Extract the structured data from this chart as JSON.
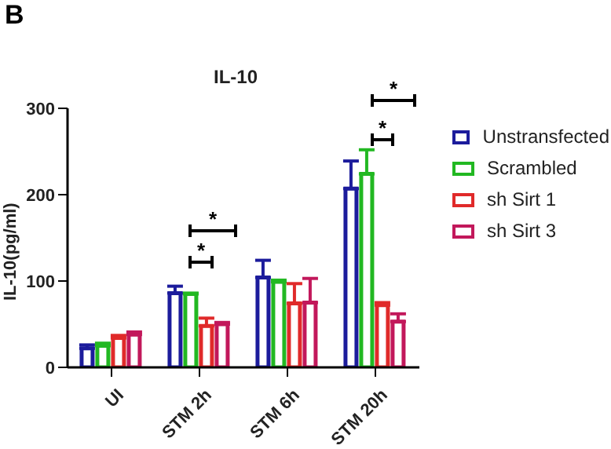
{
  "chart_data": {
    "type": "bar",
    "title": "IL-10",
    "ylabel": "IL-10(pg/ml)",
    "categories": [
      "UI",
      "STM 2h",
      "STM 6h",
      "STM 20h"
    ],
    "series": [
      {
        "name": "Unstransfected",
        "color": "#1c1c9c",
        "values": [
          22,
          86,
          104,
          207
        ],
        "errors": [
          [
            22,
            26
          ],
          [
            86,
            94
          ],
          [
            104,
            124
          ],
          [
            207,
            239
          ]
        ]
      },
      {
        "name": "Scrambled",
        "color": "#22b822",
        "values": [
          25,
          85,
          99,
          224
        ],
        "errors": [
          [
            25,
            28
          ],
          [
            85,
            86
          ],
          [
            99,
            101
          ],
          [
            224,
            252
          ]
        ]
      },
      {
        "name": "sh Sirt 1",
        "color": "#e02a2a",
        "values": [
          34,
          48,
          74,
          72
        ],
        "errors": [
          [
            34,
            37
          ],
          [
            48,
            57
          ],
          [
            74,
            97
          ],
          [
            72,
            75
          ]
        ]
      },
      {
        "name": "sh Sirt 3",
        "color": "#c2185b",
        "values": [
          38,
          50,
          75,
          53
        ],
        "errors": [
          [
            38,
            41
          ],
          [
            50,
            52
          ],
          [
            75,
            103
          ],
          [
            53,
            62
          ]
        ]
      }
    ],
    "ylim": [
      0,
      300
    ],
    "yticks": [
      0,
      100,
      200,
      300
    ],
    "legend": "right",
    "annotations": [
      "B",
      "*",
      "*",
      "*",
      "*"
    ]
  }
}
